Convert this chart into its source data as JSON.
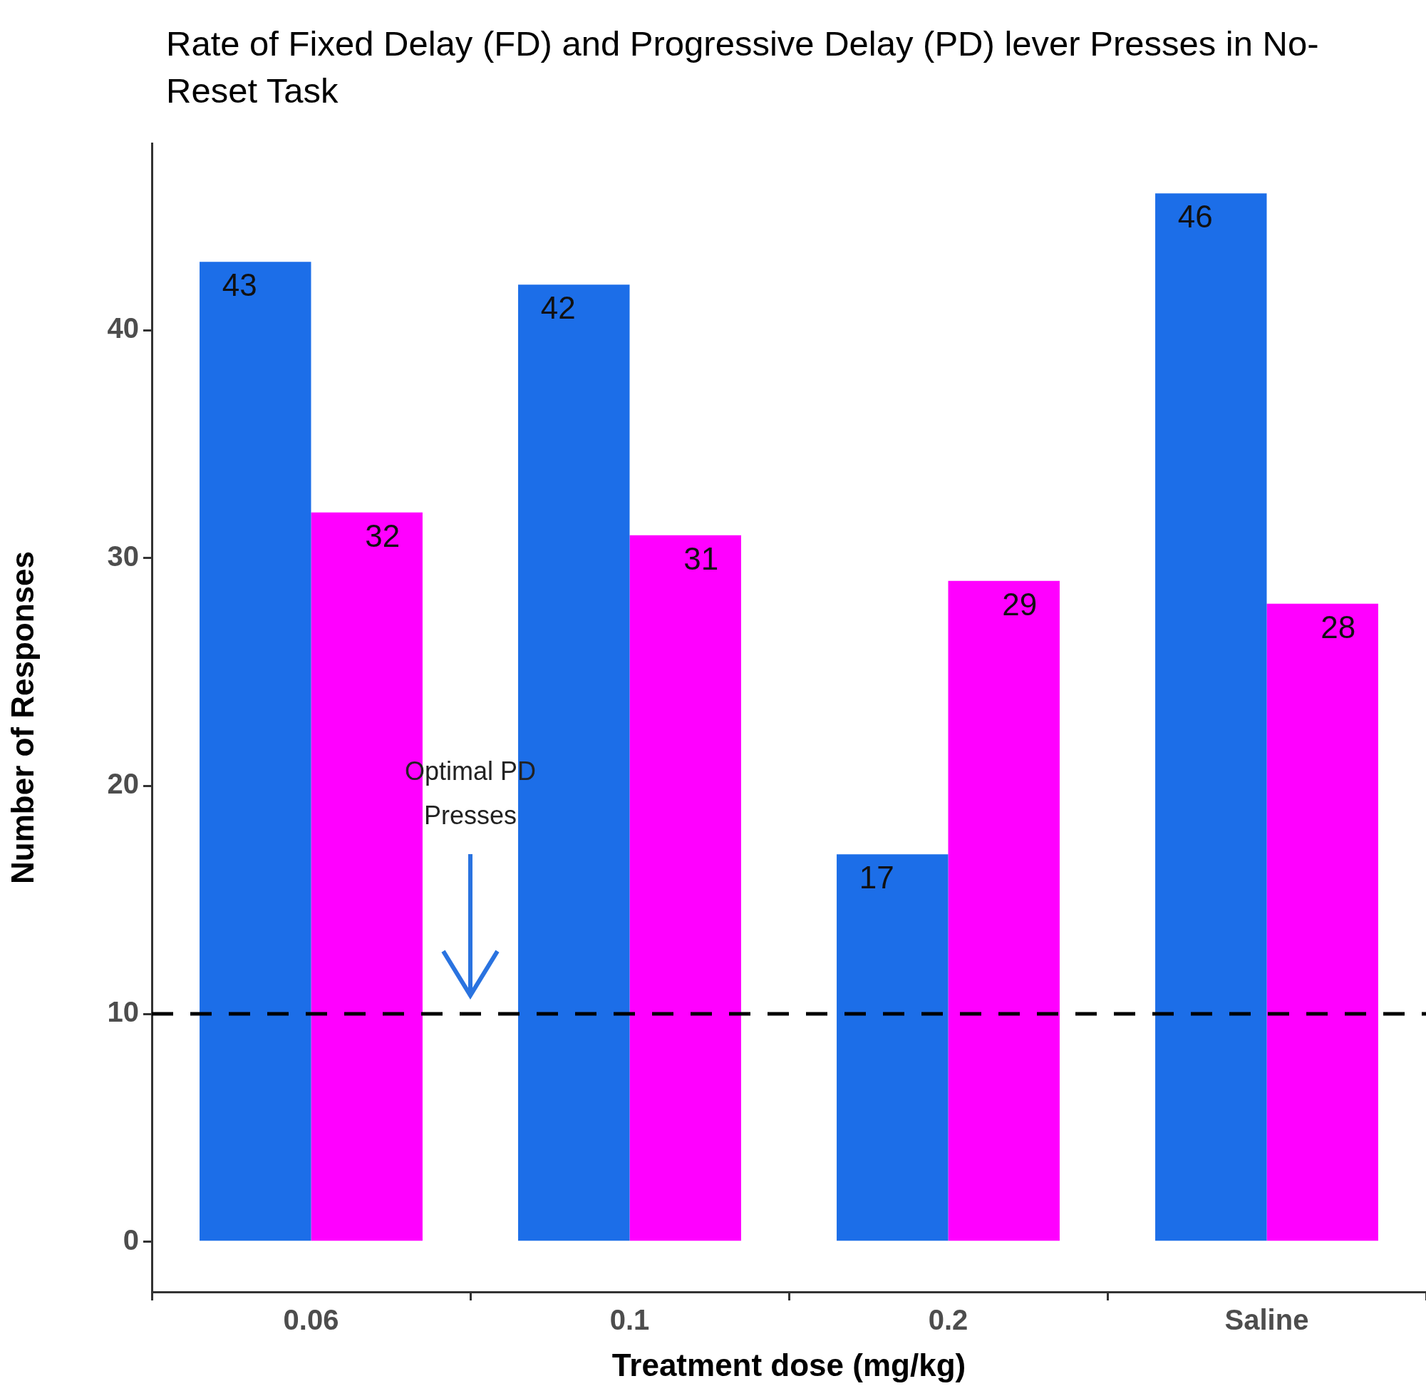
{
  "chart_data": {
    "type": "bar",
    "title": "Rate of Fixed Delay (FD) and Progressive Delay (PD) lever Presses in No-Reset Task",
    "xlabel": "Treatment dose (mg/kg)",
    "ylabel": "Number of Responses",
    "categories": [
      "0.06",
      "0.1",
      "0.2",
      "Saline"
    ],
    "series": [
      {
        "color": "#1c6ee8",
        "values": [
          43,
          42,
          17,
          46
        ]
      },
      {
        "color": "#ff00ff",
        "values": [
          32,
          31,
          29,
          28
        ]
      }
    ],
    "ylim": [
      -2.2,
      48.2
    ],
    "yticks": [
      0,
      10,
      20,
      30,
      40
    ],
    "data_labels": true,
    "legend": false,
    "grid": false,
    "ref_lines": [
      {
        "axis": "y",
        "value": 10,
        "color": "#000000",
        "line_style": "dashed"
      }
    ],
    "annotations": [
      "Optimal PD Presses"
    ]
  }
}
